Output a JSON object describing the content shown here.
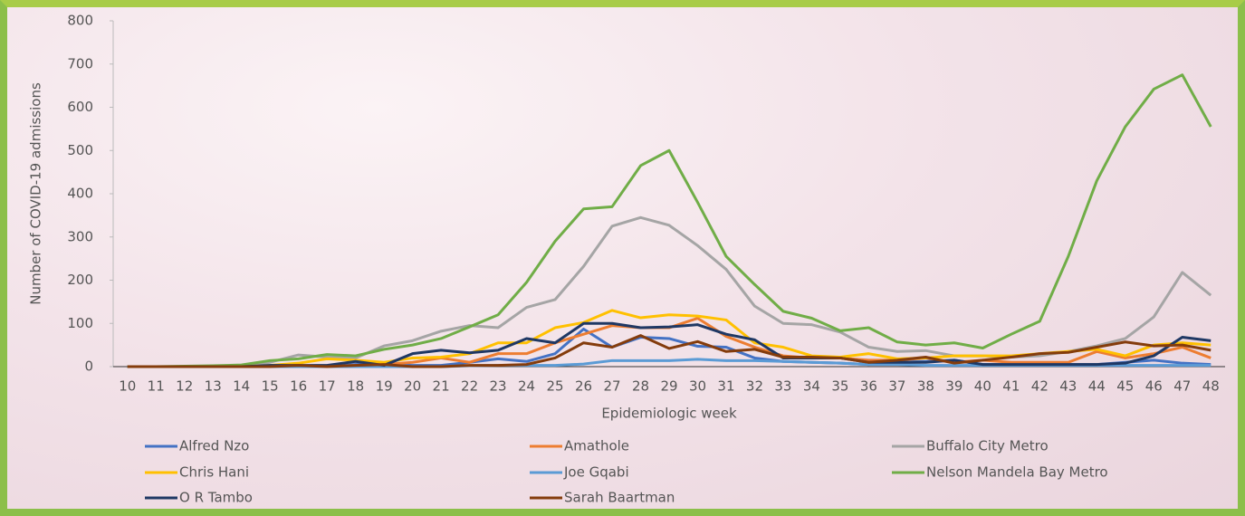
{
  "chart_data": {
    "type": "line",
    "y_label": "Number of COVID-19 admissions",
    "x_label": "Epidemiologic week",
    "categories": [
      "10",
      "11",
      "12",
      "13",
      "14",
      "15",
      "16",
      "17",
      "18",
      "19",
      "20",
      "21",
      "22",
      "23",
      "24",
      "25",
      "26",
      "27",
      "28",
      "29",
      "30",
      "31",
      "32",
      "33",
      "34",
      "35",
      "36",
      "37",
      "38",
      "39",
      "40",
      "41",
      "42",
      "43",
      "44",
      "45",
      "46",
      "47",
      "48"
    ],
    "ylim": [
      0,
      800
    ],
    "yticks": [
      0,
      100,
      200,
      300,
      400,
      500,
      600,
      700,
      800
    ],
    "series": [
      {
        "name": "Alfred Nzo",
        "color": "#4472c4",
        "values": [
          0,
          0,
          0,
          0,
          0,
          0,
          0,
          0,
          5,
          5,
          3,
          3,
          10,
          18,
          12,
          30,
          87,
          45,
          68,
          65,
          47,
          45,
          20,
          12,
          10,
          8,
          5,
          10,
          12,
          15,
          5,
          5,
          5,
          5,
          5,
          10,
          15,
          8,
          5
        ]
      },
      {
        "name": "Amathole",
        "color": "#ed7d31",
        "values": [
          0,
          0,
          0,
          0,
          0,
          0,
          0,
          0,
          3,
          5,
          10,
          20,
          10,
          30,
          30,
          55,
          75,
          95,
          90,
          90,
          112,
          70,
          45,
          25,
          20,
          20,
          15,
          15,
          20,
          10,
          15,
          10,
          10,
          10,
          35,
          20,
          30,
          45,
          20
        ]
      },
      {
        "name": "Buffalo City Metro",
        "color": "#a5a5a5",
        "values": [
          0,
          0,
          0,
          1,
          2,
          10,
          27,
          22,
          20,
          48,
          60,
          82,
          95,
          90,
          137,
          155,
          232,
          325,
          345,
          327,
          280,
          225,
          140,
          100,
          97,
          80,
          45,
          35,
          37,
          25,
          25,
          22,
          25,
          35,
          48,
          65,
          115,
          218,
          165
        ]
      },
      {
        "name": "Chris Hani",
        "color": "#ffc000",
        "values": [
          0,
          0,
          0,
          0,
          0,
          3,
          8,
          18,
          15,
          10,
          20,
          22,
          30,
          55,
          55,
          90,
          102,
          130,
          113,
          120,
          117,
          108,
          55,
          45,
          25,
          22,
          30,
          18,
          20,
          25,
          25,
          25,
          30,
          35,
          40,
          25,
          50,
          55,
          50
        ]
      },
      {
        "name": "Joe Gqabi",
        "color": "#5b9bd5",
        "values": [
          0,
          0,
          0,
          0,
          0,
          0,
          0,
          0,
          0,
          0,
          0,
          0,
          2,
          3,
          3,
          3,
          6,
          14,
          14,
          14,
          17,
          14,
          14,
          12,
          10,
          8,
          5,
          5,
          3,
          3,
          3,
          3,
          3,
          3,
          3,
          3,
          3,
          3,
          3
        ]
      },
      {
        "name": "Nelson Mandela Bay Metro",
        "color": "#70ad47",
        "values": [
          0,
          0,
          1,
          2,
          4,
          14,
          18,
          28,
          25,
          40,
          50,
          65,
          92,
          120,
          195,
          290,
          365,
          370,
          465,
          500,
          380,
          255,
          190,
          128,
          112,
          83,
          90,
          57,
          50,
          55,
          43,
          75,
          105,
          255,
          430,
          555,
          642,
          675,
          555
        ]
      },
      {
        "name": "O R Tambo",
        "color": "#1f3864",
        "values": [
          0,
          0,
          0,
          0,
          0,
          3,
          3,
          3,
          12,
          3,
          30,
          38,
          32,
          38,
          65,
          55,
          100,
          100,
          90,
          92,
          97,
          75,
          62,
          20,
          20,
          20,
          10,
          10,
          10,
          15,
          5,
          5,
          5,
          5,
          5,
          8,
          25,
          68,
          60
        ]
      },
      {
        "name": "Sarah Baartman",
        "color": "#843c0c",
        "values": [
          0,
          0,
          0,
          0,
          0,
          0,
          3,
          0,
          3,
          5,
          0,
          0,
          3,
          3,
          5,
          20,
          55,
          45,
          72,
          42,
          58,
          35,
          40,
          22,
          22,
          20,
          10,
          15,
          22,
          8,
          15,
          22,
          30,
          33,
          45,
          57,
          48,
          50,
          38
        ]
      }
    ]
  }
}
